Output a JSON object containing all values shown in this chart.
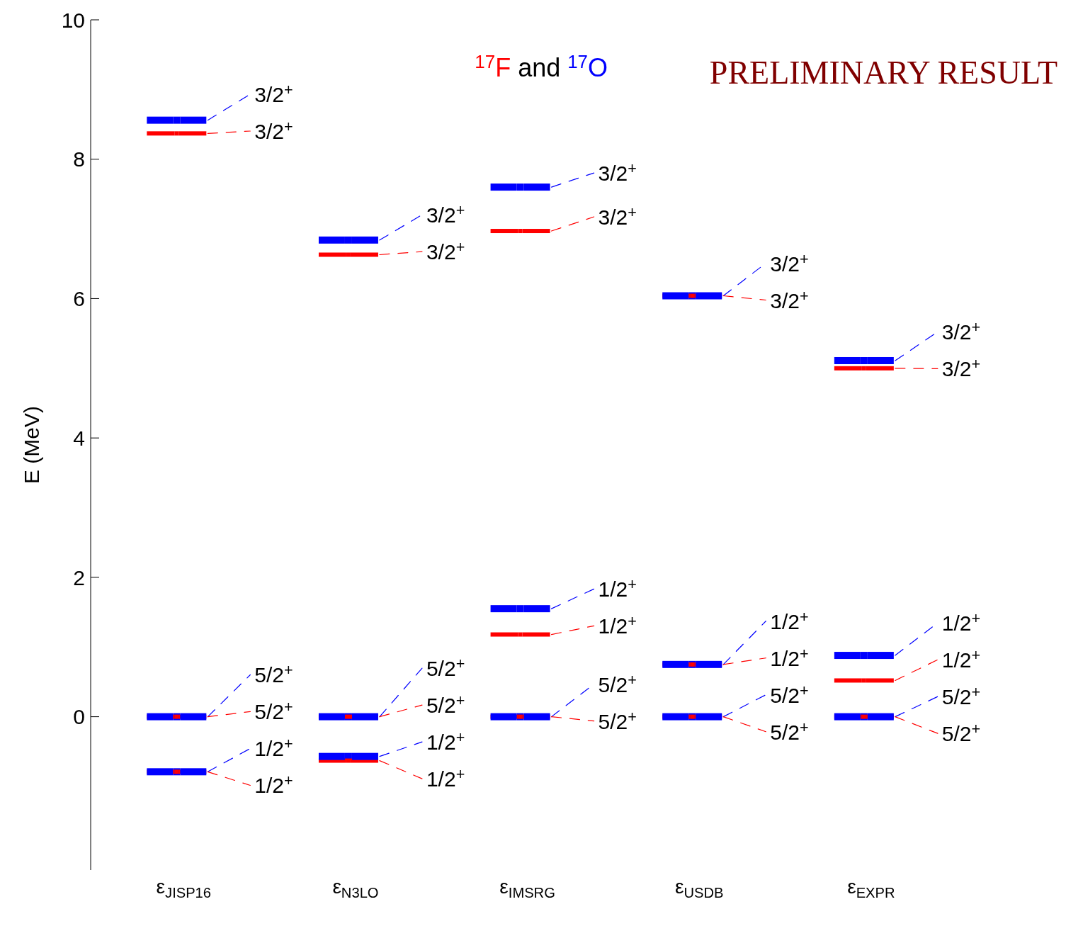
{
  "chart_data": {
    "type": "scatter",
    "ylabel": "E (MeV)",
    "legend_title": "and",
    "marker": "square",
    "categories": [
      "ε$_{JISP16}$",
      "ε$_{N3LO}$",
      "ε$_{IMSRG}$",
      "ε$_{USDB}$",
      "ε$_{EXPR}$"
    ],
    "ylim": [
      -2.2,
      10
    ],
    "yticks": [
      0,
      2,
      4,
      6,
      8,
      10
    ],
    "series": [
      {
        "name": "$^{17}$F",
        "color": "#ff0000",
        "x": [
          "ε$_{JISP16}$",
          "ε$_{JISP16}$",
          "ε$_{JISP16}$",
          "ε$_{N3LO}$",
          "ε$_{N3LO}$",
          "ε$_{N3LO}$",
          "ε$_{IMSRG}$",
          "ε$_{IMSRG}$",
          "ε$_{IMSRG}$",
          "ε$_{USDB}$",
          "ε$_{USDB}$",
          "ε$_{USDB}$",
          "ε$_{EXPR}$",
          "ε$_{EXPR}$",
          "ε$_{EXPR}$"
        ],
        "values": [
          8.37,
          0,
          -0.79,
          6.63,
          0,
          -0.63,
          6.97,
          1.18,
          0,
          6.04,
          0.75,
          0,
          5.0,
          0.52,
          0
        ]
      },
      {
        "name": "$^{17}$O",
        "color": "#0000ff",
        "x": [
          "ε$_{JISP16}$",
          "ε$_{JISP16}$",
          "ε$_{JISP16}$",
          "ε$_{N3LO}$",
          "ε$_{N3LO}$",
          "ε$_{N3LO}$",
          "ε$_{IMSRG}$",
          "ε$_{IMSRG}$",
          "ε$_{IMSRG}$",
          "ε$_{USDB}$",
          "ε$_{USDB}$",
          "ε$_{USDB}$",
          "ε$_{EXPR}$",
          "ε$_{EXPR}$",
          "ε$_{EXPR}$"
        ],
        "values": [
          8.56,
          0,
          -0.79,
          6.84,
          0,
          -0.57,
          7.6,
          1.55,
          0,
          6.04,
          0.75,
          0,
          5.11,
          0.88,
          0
        ]
      }
    ],
    "annotations": [
      "PRELIMINARY RESULT",
      "3/2$^{+}$",
      "3/2$^{+}$",
      "5/2$^{+}$",
      "5/2$^{+}$",
      "1/2$^{+}$",
      "1/2$^{+}$",
      "3/2$^{+}$",
      "3/2$^{+}$",
      "5/2$^{+}$",
      "5/2$^{+}$",
      "1/2$^{+}$",
      "1/2$^{+}$",
      "3/2$^{+}$",
      "3/2$^{+}$",
      "1/2$^{+}$",
      "1/2$^{+}$",
      "5/2$^{+}$",
      "5/2$^{+}$",
      "3/2$^{+}$",
      "3/2$^{+}$",
      "1/2$^{+}$",
      "1/2$^{+}$",
      "5/2$^{+}$",
      "5/2$^{+}$",
      "3/2$^{+}$",
      "3/2$^{+}$",
      "1/2$^{+}$",
      "1/2$^{+}$",
      "5/2$^{+}$",
      "5/2$^{+}$"
    ]
  }
}
